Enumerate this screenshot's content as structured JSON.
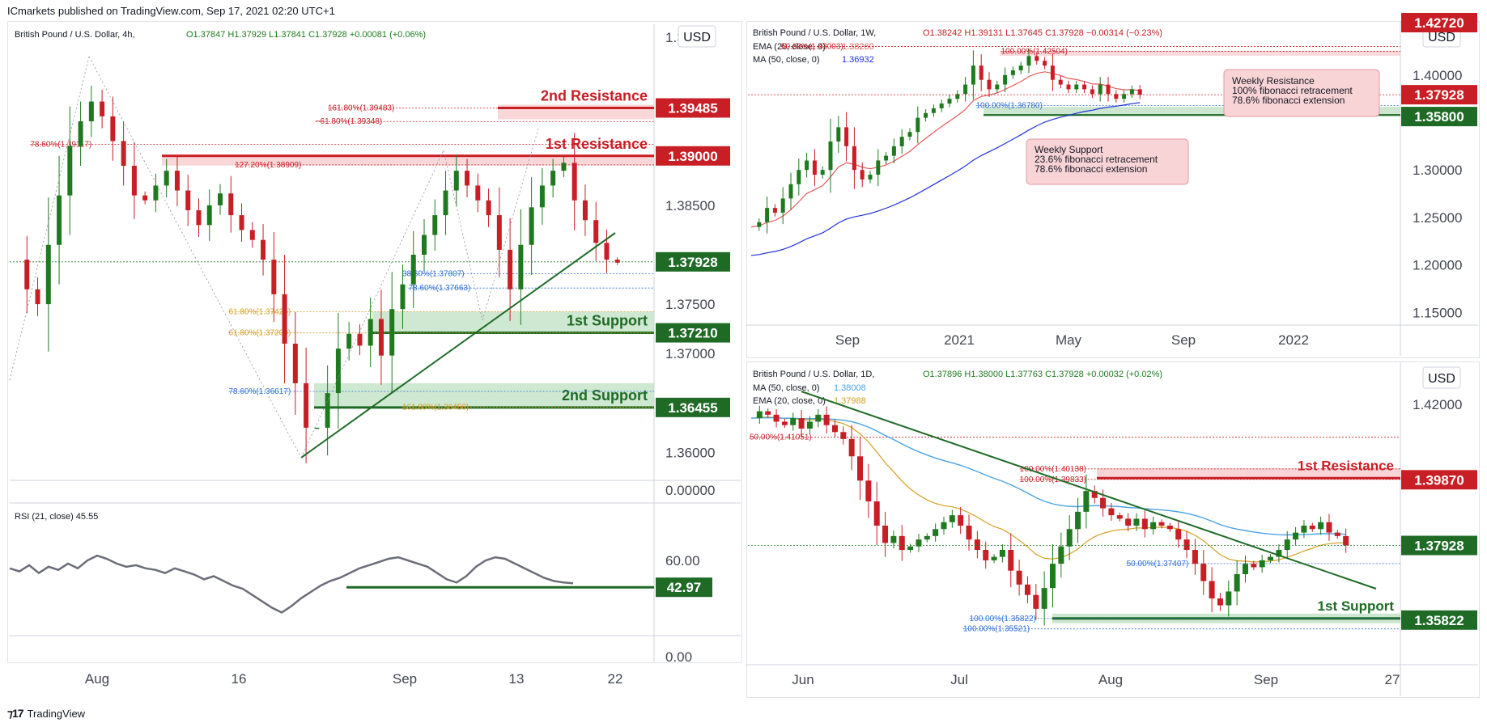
{
  "header": "ICmarkets published on TradingView.com, Sep 17, 2021 02:20 UTC+1",
  "footer": {
    "brand": "TradingView"
  },
  "colors": {
    "up": "#1f7a1f",
    "down": "#c81e25",
    "res_fill": "#f7c9cc",
    "res_line": "#c81e25",
    "sup_fill": "#bfe0c3",
    "sup_line": "#1f6b26",
    "ema_red": "#e65b5b",
    "ma_blue": "#2233dd",
    "ma_light": "#4aa3e6",
    "ema_gold": "#d4a020",
    "rsi": "#6b6e78",
    "fib_blue": "#2b6cd6",
    "fib_orange": "#d59b1b"
  },
  "currency_badge": "USD",
  "chart_data": [
    {
      "type": "candlestick",
      "title": "British Pound / U.S. Dollar, 4h,",
      "ohlc": {
        "O": "1.37847",
        "H": "1.37929",
        "L": "1.37841",
        "C": "1.37928",
        "chg": "+0.00081 (+0.06%)"
      },
      "x_ticks": [
        "Aug",
        "16",
        "Sep",
        "13",
        "22"
      ],
      "y_ticks": [
        "1.38500",
        "1.37500",
        "1.37000",
        "1.36000",
        "1.39000"
      ],
      "ylim": [
        1.3575,
        1.4025
      ],
      "last_price": "1.37928",
      "levels": [
        {
          "label": "2nd Resistance",
          "price": 1.39485,
          "tag": "1.39485",
          "kind": "res"
        },
        {
          "label": "1st Resistance",
          "price": 1.39,
          "tag": "1.39000",
          "kind": "res"
        },
        {
          "label": "1st Support",
          "price": 1.3721,
          "tag": "1.37210",
          "kind": "sup"
        },
        {
          "label": "2nd Support",
          "price": 1.36455,
          "tag": "1.36455",
          "kind": "sup"
        }
      ],
      "fib_labels": [
        {
          "text": "161.80%(1.39483)",
          "price": 1.39483,
          "color": "#c81e25",
          "pos": 0.5
        },
        {
          "text": "−61.80%(1.39348)",
          "price": 1.39348,
          "color": "#c81e25",
          "pos": 0.48
        },
        {
          "text": "78.60%(1.39117)",
          "price": 1.39117,
          "color": "#c81e25",
          "pos": 0.02
        },
        {
          "text": "127.20%(1.38909)",
          "price": 1.38909,
          "color": "#c81e25",
          "pos": 0.35
        },
        {
          "text": "38.60%(1.37807)",
          "price": 1.37807,
          "color": "#2b6cd6",
          "pos": 0.62
        },
        {
          "text": "78.60%(1.37663)",
          "price": 1.37663,
          "color": "#2b6cd6",
          "pos": 0.63
        },
        {
          "text": "61.80%(1.37424)",
          "price": 1.37424,
          "color": "#d59b1b",
          "pos": 0.34
        },
        {
          "text": "61.80%(1.37209)",
          "price": 1.37209,
          "color": "#d59b1b",
          "pos": 0.34
        },
        {
          "text": "78.60%(1.36617)",
          "price": 1.36617,
          "color": "#2b6cd6",
          "pos": 0.34
        },
        {
          "text": "161.80%(1.36456)",
          "price": 1.36456,
          "color": "#d59b1b",
          "pos": 0.62
        }
      ],
      "price_path": [
        1.3795,
        1.3765,
        1.375,
        1.381,
        1.386,
        1.391,
        1.3935,
        1.3955,
        1.394,
        1.3915,
        1.389,
        1.386,
        1.3855,
        1.387,
        1.3885,
        1.3865,
        1.3845,
        1.383,
        1.385,
        1.3862,
        1.384,
        1.3825,
        1.3815,
        1.3795,
        1.376,
        1.371,
        1.367,
        1.3625,
        1.3625,
        1.366,
        1.3705,
        1.372,
        1.3708,
        1.3735,
        1.3698,
        1.3745,
        1.377,
        1.38,
        1.382,
        1.384,
        1.3865,
        1.3885,
        1.387,
        1.3855,
        1.384,
        1.3805,
        1.3765,
        1.381,
        1.3848,
        1.387,
        1.3885,
        1.3893,
        1.3855,
        1.3835,
        1.3812,
        1.3795,
        1.3792
      ],
      "rsi": {
        "title": "RSI (21, close)",
        "value": "45.55",
        "tag": "42.97",
        "level": 42.97,
        "y_ticks": [
          "60.00",
          "0.00"
        ],
        "top_tick": "0.00000",
        "path": [
          55,
          53,
          57,
          52,
          56,
          54,
          58,
          55,
          60,
          63,
          61,
          58,
          56,
          57,
          55,
          54,
          52,
          55,
          53,
          51,
          48,
          50,
          47,
          44,
          42,
          38,
          34,
          30,
          27,
          31,
          36,
          40,
          44,
          47,
          49,
          52,
          55,
          57,
          59,
          61,
          62,
          60,
          58,
          56,
          52,
          48,
          46,
          50,
          56,
          60,
          62,
          61,
          58,
          55,
          52,
          49,
          47,
          46,
          45.5
        ]
      }
    },
    {
      "type": "candlestick",
      "title": "British Pound / U.S. Dollar, 1W,",
      "ohlc": {
        "O": "1.38242",
        "H": "1.39131",
        "L": "1.37645",
        "C": "1.37928",
        "chg": "−0.00314 (−0.23%)"
      },
      "indicators": [
        {
          "label": "EMA (20, close, 0)",
          "value": "1.38260",
          "color": "#e65b5b"
        },
        {
          "label": "MA (50, close, 0)",
          "value": "1.36932",
          "color": "#2233dd"
        }
      ],
      "x_ticks": [
        "Sep",
        "2021",
        "May",
        "Sep",
        "2022"
      ],
      "y_ticks": [
        "1.40000",
        "1.30000",
        "1.25000",
        "1.20000",
        "1.15000"
      ],
      "top_tag": "1.42720",
      "ylim": [
        1.14,
        1.445
      ],
      "last_price": "1.37928",
      "levels": [
        {
          "label": "",
          "price": 1.358,
          "tag": "1.35800",
          "kind": "sup"
        }
      ],
      "fib_labels": [
        {
          "text": "100.00%(1.42504)",
          "price": 1.42504,
          "color": "#c81e25",
          "pos": 0.39
        },
        {
          "text": "50.60%(1.43003)",
          "price": 1.43003,
          "color": "#c81e25",
          "pos": 0.04
        },
        {
          "text": "100.00%(1.36780)",
          "price": 1.3678,
          "color": "#2b6cd6",
          "pos": 0.35
        }
      ],
      "annotations": [
        {
          "lines": [
            "Weekly Resistance",
            "100% fibonacci retracement",
            "78.6% fibonacci extension"
          ]
        },
        {
          "lines": [
            "Weekly Support",
            "23.6% fibonacci retracement",
            "78.6% fibonacci extension"
          ]
        }
      ],
      "price_path": [
        1.24,
        1.245,
        1.26,
        1.255,
        1.27,
        1.285,
        1.3,
        1.31,
        1.295,
        1.3,
        1.33,
        1.345,
        1.325,
        1.3,
        1.29,
        1.295,
        1.31,
        1.315,
        1.325,
        1.335,
        1.34,
        1.355,
        1.36,
        1.365,
        1.37,
        1.375,
        1.38,
        1.39,
        1.41,
        1.395,
        1.385,
        1.39,
        1.4,
        1.405,
        1.41,
        1.42,
        1.415,
        1.41,
        1.395,
        1.39,
        1.385,
        1.39,
        1.385,
        1.38,
        1.39,
        1.38,
        1.375,
        1.38,
        1.385,
        1.3793
      ]
    },
    {
      "type": "candlestick",
      "title": "British Pound / U.S. Dollar, 1D,",
      "ohlc": {
        "O": "1.37896",
        "H": "1.38000",
        "L": "1.37763",
        "C": "1.37928",
        "chg": "+0.00032 (+0.02%)"
      },
      "indicators": [
        {
          "label": "MA (50, close, 0)",
          "value": "1.38008",
          "color": "#4aa3e6"
        },
        {
          "label": "EMA (20, close, 0)",
          "value": "1.37988",
          "color": "#d4a020"
        }
      ],
      "x_ticks": [
        "Jun",
        "Jul",
        "Aug",
        "Sep",
        "27"
      ],
      "y_ticks": [
        "1.42000"
      ],
      "ylim": [
        1.35,
        1.427
      ],
      "last_price": "1.37928",
      "levels": [
        {
          "label": "1st Resistance",
          "price": 1.3987,
          "tag": "1.39870",
          "kind": "res"
        },
        {
          "label": "1st Support",
          "price": 1.35822,
          "tag": "1.35822",
          "kind": "sup"
        }
      ],
      "fib_labels": [
        {
          "text": "50.00%(1.41051)",
          "price": 1.41051,
          "color": "#c81e25",
          "pos": 0.0
        },
        {
          "text": "100.00%(1.40138)",
          "price": 1.40138,
          "color": "#c81e25",
          "pos": 0.43
        },
        {
          "text": "100.00%(1.39833)",
          "price": 1.39833,
          "color": "#c81e25",
          "pos": 0.43
        },
        {
          "text": "50.00%(1.37407)",
          "price": 1.37407,
          "color": "#2b6cd6",
          "pos": 0.6
        },
        {
          "text": "100.00%(1.35822)",
          "price": 1.35822,
          "color": "#2b6cd6",
          "pos": 0.35
        },
        {
          "text": "100.00%(1.35521)",
          "price": 1.35521,
          "color": "#2b6cd6",
          "pos": 0.34
        }
      ],
      "price_path": [
        1.416,
        1.418,
        1.417,
        1.415,
        1.414,
        1.416,
        1.413,
        1.415,
        1.417,
        1.414,
        1.412,
        1.41,
        1.405,
        1.398,
        1.392,
        1.385,
        1.38,
        1.382,
        1.378,
        1.379,
        1.381,
        1.382,
        1.384,
        1.386,
        1.388,
        1.385,
        1.381,
        1.378,
        1.375,
        1.376,
        1.378,
        1.372,
        1.368,
        1.365,
        1.361,
        1.367,
        1.374,
        1.379,
        1.384,
        1.389,
        1.395,
        1.393,
        1.39,
        1.388,
        1.387,
        1.385,
        1.387,
        1.384,
        1.386,
        1.385,
        1.384,
        1.381,
        1.378,
        1.374,
        1.369,
        1.364,
        1.362,
        1.366,
        1.371,
        1.374,
        1.373,
        1.375,
        1.376,
        1.378,
        1.381,
        1.383,
        1.385,
        1.384,
        1.386,
        1.383,
        1.382,
        1.3793
      ]
    }
  ]
}
